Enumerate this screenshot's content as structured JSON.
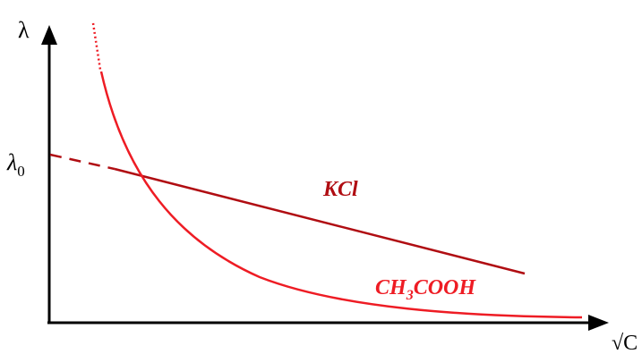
{
  "axes": {
    "y_label": "λ",
    "x_label": "√C",
    "y_intercept_label": "λ",
    "y_intercept_subscript": "0"
  },
  "curves": {
    "strong": {
      "label": "KCl",
      "color": "#b00d12"
    },
    "weak": {
      "label_prefix": "CH",
      "label_subscript": "3",
      "label_suffix": "COOH",
      "color": "#ee1c24"
    }
  }
}
